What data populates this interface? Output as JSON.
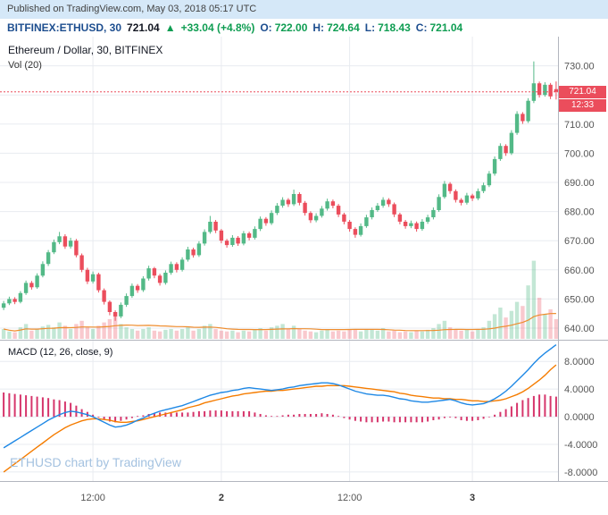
{
  "published_bar": {
    "text": "Published on TradingView.com, May 03, 2018 05:17 UTC"
  },
  "symbol_bar": {
    "symbol": "BITFINEX:ETHUSD, 30",
    "last": "721.04",
    "change_arrow": "▲",
    "change": "+33.04 (+4.8%)",
    "ohlc": [
      {
        "label": "O:",
        "value": "722.00"
      },
      {
        "label": "H:",
        "value": "724.64"
      },
      {
        "label": "L:",
        "value": "718.43"
      },
      {
        "label": "C:",
        "value": "721.04"
      }
    ]
  },
  "main_panel": {
    "title": "Ethereum / Dollar, 30, BITFINEX",
    "indicator_label": "Vol (20)"
  },
  "macd_panel": {
    "label": "MACD (12, 26, close, 9)"
  },
  "watermark": "ETHUSD chart by TradingView",
  "last_price_badge": "721.04",
  "countdown_badge": "12:33",
  "colors": {
    "up": "#53b987",
    "down": "#eb4d5c",
    "vol_up": "rgba(83,185,135,0.35)",
    "vol_down": "rgba(235,77,92,0.30)",
    "vol_ma": "#ef8d2e",
    "macd": "#1e88e5",
    "signal": "#f57c00",
    "hist": "#d6356b",
    "grid": "#e8ebf0",
    "border": "#b2b5be",
    "axis_text": "#555555",
    "badge": "#eb4d5c",
    "accent_blue": "#1d4e8f",
    "green_text": "#0f9d52",
    "published_bg": "#d5e8f8"
  },
  "chart_data": {
    "type": "candlestick",
    "title": "Ethereum / Dollar, 30, BITFINEX",
    "panes": [
      "price+volume",
      "macd"
    ],
    "last_price": 721.04,
    "candle_format": "[open, high, low, close, volume]",
    "price_axis": {
      "ticks": [
        730,
        720,
        710,
        700,
        690,
        680,
        670,
        660,
        650,
        640
      ],
      "range": [
        636,
        740
      ]
    },
    "macd_axis": {
      "ticks": [
        8,
        4,
        0,
        -4,
        -8
      ],
      "range": [
        -9.3,
        11.0
      ]
    },
    "time_axis": {
      "labels": [
        {
          "index": 16,
          "text": "12:00",
          "bold": false
        },
        {
          "index": 39,
          "text": "2",
          "bold": true
        },
        {
          "index": 62,
          "text": "12:00",
          "bold": false
        },
        {
          "index": 84,
          "text": "3",
          "bold": true
        }
      ]
    },
    "vol_ma_period": 20,
    "candles": [
      [
        647.0,
        649.3,
        646.2,
        648.5,
        12
      ],
      [
        648.5,
        650.8,
        647.9,
        650.0,
        9
      ],
      [
        650.0,
        650.6,
        648.2,
        649.0,
        8
      ],
      [
        649.0,
        652.7,
        648.5,
        652.0,
        14
      ],
      [
        652.0,
        656.3,
        651.4,
        655.5,
        18
      ],
      [
        655.5,
        656.2,
        653.2,
        654.0,
        10
      ],
      [
        654.0,
        658.8,
        653.5,
        658.0,
        12
      ],
      [
        658.0,
        662.9,
        657.4,
        662.0,
        15
      ],
      [
        662.0,
        666.8,
        661.3,
        666.0,
        17
      ],
      [
        666.0,
        670.4,
        665.4,
        669.5,
        14
      ],
      [
        669.5,
        673.0,
        668.8,
        671.5,
        20
      ],
      [
        671.5,
        672.2,
        667.2,
        668.0,
        16
      ],
      [
        668.0,
        671.0,
        667.3,
        670.0,
        12
      ],
      [
        670.0,
        670.6,
        664.3,
        665.0,
        18
      ],
      [
        665.0,
        665.6,
        659.2,
        660.0,
        22
      ],
      [
        660.0,
        660.7,
        655.1,
        656.0,
        14
      ],
      [
        656.0,
        659.4,
        655.3,
        658.5,
        12
      ],
      [
        658.5,
        659.0,
        652.2,
        653.0,
        16
      ],
      [
        653.0,
        653.6,
        648.1,
        649.0,
        20
      ],
      [
        649.0,
        649.5,
        644.4,
        645.5,
        24
      ],
      [
        645.5,
        646.1,
        642.5,
        644.0,
        28
      ],
      [
        644.0,
        648.8,
        643.4,
        648.0,
        18
      ],
      [
        648.0,
        651.9,
        647.3,
        651.0,
        14
      ],
      [
        651.0,
        655.3,
        650.4,
        654.5,
        12
      ],
      [
        654.5,
        655.1,
        652.1,
        653.0,
        10
      ],
      [
        653.0,
        657.8,
        652.4,
        657.0,
        12
      ],
      [
        657.0,
        661.4,
        656.3,
        660.5,
        14
      ],
      [
        660.5,
        661.0,
        657.1,
        658.0,
        10
      ],
      [
        658.0,
        658.6,
        654.6,
        655.5,
        9
      ],
      [
        655.5,
        659.8,
        654.9,
        659.0,
        11
      ],
      [
        659.0,
        662.8,
        658.3,
        662.0,
        12
      ],
      [
        662.0,
        662.6,
        659.1,
        660.0,
        10
      ],
      [
        660.0,
        664.3,
        659.4,
        663.5,
        12
      ],
      [
        663.5,
        667.9,
        662.8,
        667.0,
        14
      ],
      [
        667.0,
        667.6,
        664.2,
        665.0,
        10
      ],
      [
        665.0,
        669.8,
        664.4,
        669.0,
        12
      ],
      [
        669.0,
        673.9,
        668.3,
        673.0,
        16
      ],
      [
        673.0,
        678.5,
        672.4,
        676.5,
        18
      ],
      [
        676.5,
        677.1,
        672.6,
        673.5,
        12
      ],
      [
        673.5,
        674.0,
        669.1,
        670.0,
        10
      ],
      [
        670.0,
        670.6,
        667.6,
        668.5,
        9
      ],
      [
        668.5,
        671.9,
        667.9,
        671.0,
        10
      ],
      [
        671.0,
        671.6,
        668.2,
        669.0,
        8
      ],
      [
        669.0,
        673.3,
        668.4,
        672.5,
        10
      ],
      [
        672.5,
        673.1,
        670.1,
        671.0,
        9
      ],
      [
        671.0,
        674.9,
        670.4,
        674.0,
        11
      ],
      [
        674.0,
        678.3,
        673.3,
        677.5,
        13
      ],
      [
        677.5,
        678.1,
        675.1,
        676.0,
        10
      ],
      [
        676.0,
        680.4,
        675.4,
        679.5,
        14
      ],
      [
        679.5,
        682.9,
        678.8,
        682.0,
        16
      ],
      [
        682.0,
        684.9,
        681.3,
        684.0,
        18
      ],
      [
        684.0,
        684.6,
        681.6,
        682.5,
        12
      ],
      [
        682.5,
        687.5,
        681.9,
        686.0,
        16
      ],
      [
        686.0,
        686.6,
        682.1,
        683.0,
        12
      ],
      [
        683.0,
        683.6,
        678.6,
        679.5,
        10
      ],
      [
        679.5,
        680.1,
        676.1,
        677.0,
        9
      ],
      [
        677.0,
        679.4,
        676.3,
        678.5,
        8
      ],
      [
        678.5,
        681.9,
        677.9,
        681.0,
        10
      ],
      [
        681.0,
        684.4,
        680.3,
        683.5,
        12
      ],
      [
        683.5,
        684.1,
        681.1,
        682.0,
        9
      ],
      [
        682.0,
        682.6,
        678.1,
        679.0,
        10
      ],
      [
        679.0,
        679.6,
        675.6,
        676.5,
        9
      ],
      [
        676.5,
        677.1,
        673.1,
        674.0,
        11
      ],
      [
        674.0,
        674.6,
        671.0,
        672.0,
        12
      ],
      [
        672.0,
        675.9,
        671.4,
        675.0,
        9
      ],
      [
        675.0,
        678.9,
        674.4,
        678.0,
        11
      ],
      [
        678.0,
        681.4,
        677.3,
        680.5,
        12
      ],
      [
        680.5,
        682.9,
        679.9,
        682.0,
        10
      ],
      [
        682.0,
        684.9,
        681.3,
        684.0,
        13
      ],
      [
        684.0,
        684.6,
        681.6,
        682.5,
        9
      ],
      [
        682.5,
        683.1,
        678.1,
        679.0,
        10
      ],
      [
        679.0,
        679.6,
        675.6,
        676.5,
        8
      ],
      [
        676.5,
        677.1,
        674.1,
        675.0,
        9
      ],
      [
        675.0,
        676.9,
        674.3,
        676.0,
        8
      ],
      [
        676.0,
        676.6,
        673.1,
        674.0,
        10
      ],
      [
        674.0,
        677.4,
        673.4,
        676.5,
        9
      ],
      [
        676.5,
        678.9,
        675.8,
        678.0,
        11
      ],
      [
        678.0,
        681.4,
        677.3,
        680.5,
        13
      ],
      [
        680.5,
        685.9,
        679.9,
        685.0,
        18
      ],
      [
        685.0,
        690.5,
        684.4,
        689.5,
        22
      ],
      [
        689.5,
        690.1,
        686.1,
        687.0,
        14
      ],
      [
        687.0,
        687.6,
        683.1,
        684.0,
        12
      ],
      [
        684.0,
        684.6,
        682.1,
        683.0,
        10
      ],
      [
        683.0,
        686.4,
        682.4,
        685.5,
        11
      ],
      [
        685.5,
        686.1,
        683.6,
        684.5,
        9
      ],
      [
        684.5,
        687.9,
        683.9,
        687.0,
        12
      ],
      [
        687.0,
        689.9,
        686.3,
        689.0,
        14
      ],
      [
        689.0,
        693.9,
        688.4,
        693.0,
        22
      ],
      [
        693.0,
        698.9,
        692.3,
        698.0,
        30
      ],
      [
        698.0,
        703.4,
        697.4,
        702.5,
        38
      ],
      [
        702.5,
        703.1,
        699.1,
        700.0,
        26
      ],
      [
        700.0,
        707.9,
        699.4,
        707.0,
        34
      ],
      [
        707.0,
        714.4,
        706.3,
        713.5,
        45
      ],
      [
        713.5,
        714.1,
        710.1,
        711.0,
        40
      ],
      [
        711.0,
        718.9,
        710.4,
        718.0,
        65
      ],
      [
        718.0,
        731.5,
        717.2,
        724.0,
        95
      ],
      [
        724.0,
        724.6,
        719.1,
        720.0,
        50
      ],
      [
        720.0,
        724.4,
        719.4,
        723.5,
        30
      ],
      [
        723.5,
        724.1,
        718.6,
        719.5,
        36
      ],
      [
        722.0,
        724.64,
        718.43,
        721.04,
        24
      ]
    ],
    "macd": [
      -4.5,
      -4.0,
      -3.5,
      -3.0,
      -2.5,
      -2.0,
      -1.5,
      -1.0,
      -0.5,
      -0.1,
      0.3,
      0.6,
      0.8,
      0.7,
      0.5,
      0.3,
      0.0,
      -0.4,
      -0.8,
      -1.2,
      -1.5,
      -1.4,
      -1.2,
      -0.9,
      -0.5,
      -0.2,
      0.2,
      0.5,
      0.8,
      1.0,
      1.2,
      1.4,
      1.6,
      1.9,
      2.2,
      2.5,
      2.8,
      3.1,
      3.3,
      3.5,
      3.6,
      3.8,
      3.9,
      4.1,
      4.2,
      4.1,
      4.0,
      3.9,
      3.8,
      3.9,
      4.0,
      4.2,
      4.3,
      4.5,
      4.6,
      4.7,
      4.8,
      4.9,
      4.9,
      4.8,
      4.6,
      4.3,
      4.0,
      3.7,
      3.5,
      3.3,
      3.2,
      3.1,
      3.1,
      3.0,
      2.8,
      2.6,
      2.5,
      2.3,
      2.2,
      2.1,
      2.1,
      2.2,
      2.3,
      2.4,
      2.5,
      2.3,
      2.0,
      1.8,
      1.7,
      1.8,
      1.9,
      2.2,
      2.6,
      3.1,
      3.7,
      4.4,
      5.2,
      6.0,
      6.8,
      7.7,
      8.5,
      9.2,
      9.8,
      10.4
    ],
    "signal": [
      -8.0,
      -7.4,
      -6.8,
      -6.2,
      -5.6,
      -5.0,
      -4.4,
      -3.8,
      -3.2,
      -2.6,
      -2.1,
      -1.6,
      -1.2,
      -0.9,
      -0.6,
      -0.4,
      -0.3,
      -0.3,
      -0.4,
      -0.5,
      -0.7,
      -0.8,
      -0.8,
      -0.7,
      -0.6,
      -0.4,
      -0.2,
      0.0,
      0.2,
      0.4,
      0.6,
      0.8,
      1.0,
      1.3,
      1.5,
      1.7,
      2.0,
      2.2,
      2.4,
      2.6,
      2.8,
      3.0,
      3.1,
      3.3,
      3.4,
      3.5,
      3.6,
      3.7,
      3.7,
      3.8,
      3.8,
      3.9,
      4.0,
      4.1,
      4.2,
      4.3,
      4.4,
      4.4,
      4.5,
      4.5,
      4.5,
      4.5,
      4.4,
      4.3,
      4.2,
      4.1,
      4.0,
      3.9,
      3.8,
      3.7,
      3.6,
      3.4,
      3.3,
      3.1,
      3.0,
      2.9,
      2.8,
      2.7,
      2.7,
      2.6,
      2.6,
      2.5,
      2.5,
      2.4,
      2.3,
      2.3,
      2.2,
      2.2,
      2.3,
      2.4,
      2.6,
      2.9,
      3.2,
      3.6,
      4.1,
      4.7,
      5.3,
      6.0,
      6.8,
      7.5
    ]
  }
}
